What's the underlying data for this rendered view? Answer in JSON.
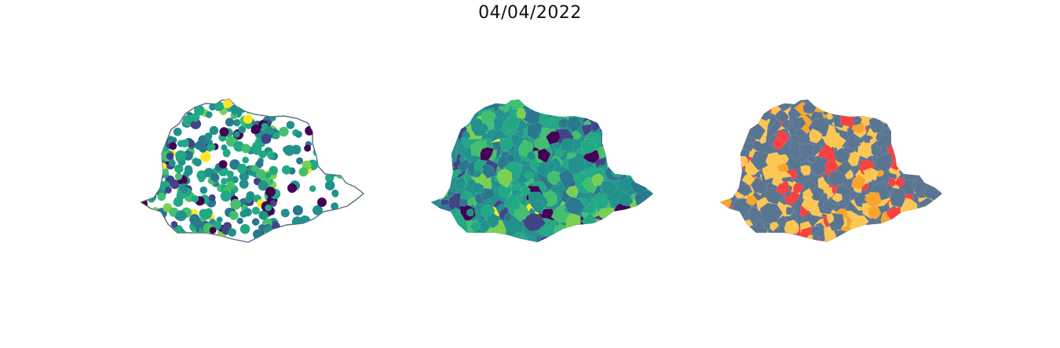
{
  "figure": {
    "title": "04/04/2022"
  },
  "maps": [
    {
      "name": "station-points-map",
      "kind": "points",
      "outline_color": "#5b6a82"
    },
    {
      "name": "viridis-choropleth-map",
      "kind": "choropleth"
    },
    {
      "name": "category-choropleth-map",
      "kind": "choropleth"
    }
  ],
  "colors": {
    "viridis": [
      "#440154",
      "#482475",
      "#414487",
      "#355f8d",
      "#2a788e",
      "#21918c",
      "#22a884",
      "#44bf70",
      "#7ad151",
      "#bddf26",
      "#fde725"
    ],
    "categories": [
      "#5a7592",
      "#fcc652",
      "#f84141",
      "#f8a52c"
    ]
  }
}
